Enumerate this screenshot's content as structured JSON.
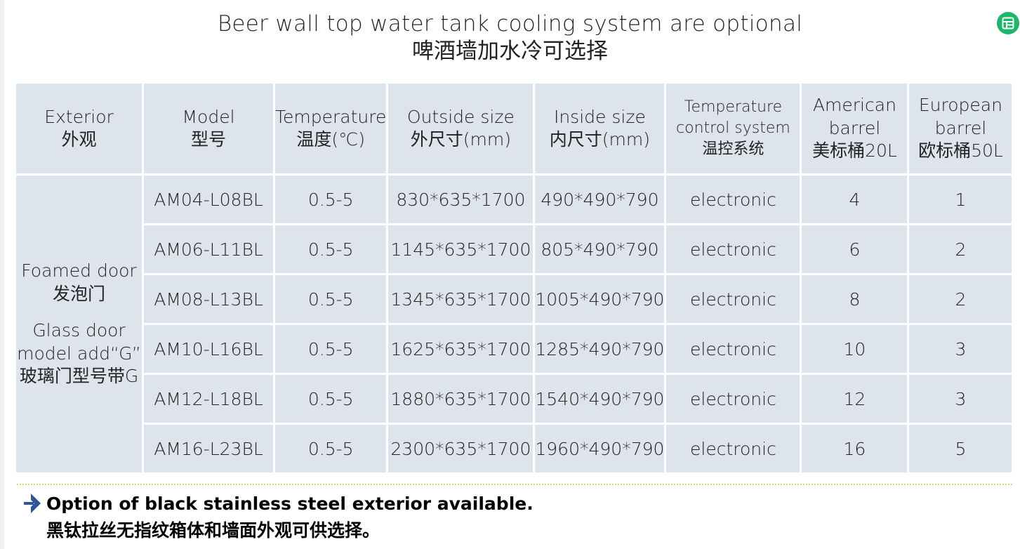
{
  "title": {
    "line_en": "Beer wall top water tank cooling system are optional",
    "line_cn": "啤酒墙加水冷可选择"
  },
  "icons": {
    "top_right": "app-grid-icon",
    "note_bullet": "right-arrow-icon"
  },
  "colors": {
    "cell_bg": "#dde4ec",
    "icon_green": "#1fb56a",
    "divider": "#c8dc80"
  },
  "table": {
    "headers": [
      {
        "en": "Exterior",
        "cn": "外观"
      },
      {
        "en": "Model",
        "cn": "型号"
      },
      {
        "en": "Temperature",
        "cn": "温度(℃)"
      },
      {
        "en": "Outside size",
        "cn": "外尺寸(mm)"
      },
      {
        "en": "Inside size",
        "cn": "内尺寸(mm)"
      },
      {
        "en": "Temperature control system",
        "cn": "温控系统"
      },
      {
        "en": "American barrel",
        "cn": "美标桶20L"
      },
      {
        "en": "European barrel",
        "cn": "欧标桶50L"
      }
    ],
    "exterior": {
      "foamed_en": "Foamed door",
      "foamed_cn": "发泡门",
      "glass_en": "Glass door model add“G”",
      "glass_cn": "玻璃门型号带G"
    },
    "rows": [
      {
        "model": "AM04-L08BL",
        "temperature": "0.5-5",
        "outside": "830*635*1700",
        "inside": "490*490*790",
        "control": "electronic",
        "american": "4",
        "european": "1"
      },
      {
        "model": "AM06-L11BL",
        "temperature": "0.5-5",
        "outside": "1145*635*1700",
        "inside": "805*490*790",
        "control": "electronic",
        "american": "6",
        "european": "2"
      },
      {
        "model": "AM08-L13BL",
        "temperature": "0.5-5",
        "outside": "1345*635*1700",
        "inside": "1005*490*790",
        "control": "electronic",
        "american": "8",
        "european": "2"
      },
      {
        "model": "AM10-L16BL",
        "temperature": "0.5-5",
        "outside": "1625*635*1700",
        "inside": "1285*490*790",
        "control": "electronic",
        "american": "10",
        "european": "3"
      },
      {
        "model": "AM12-L18BL",
        "temperature": "0.5-5",
        "outside": "1880*635*1700",
        "inside": "1540*490*790",
        "control": "electronic",
        "american": "12",
        "european": "3"
      },
      {
        "model": "AM16-L23BL",
        "temperature": "0.5-5",
        "outside": "2300*635*1700",
        "inside": "1960*490*790",
        "control": "electronic",
        "american": "16",
        "european": "5"
      }
    ]
  },
  "note": {
    "en": "Option of black stainless steel exterior available.",
    "cn": "黑钛拉丝无指纹箱体和墙面外观可供选择。"
  }
}
